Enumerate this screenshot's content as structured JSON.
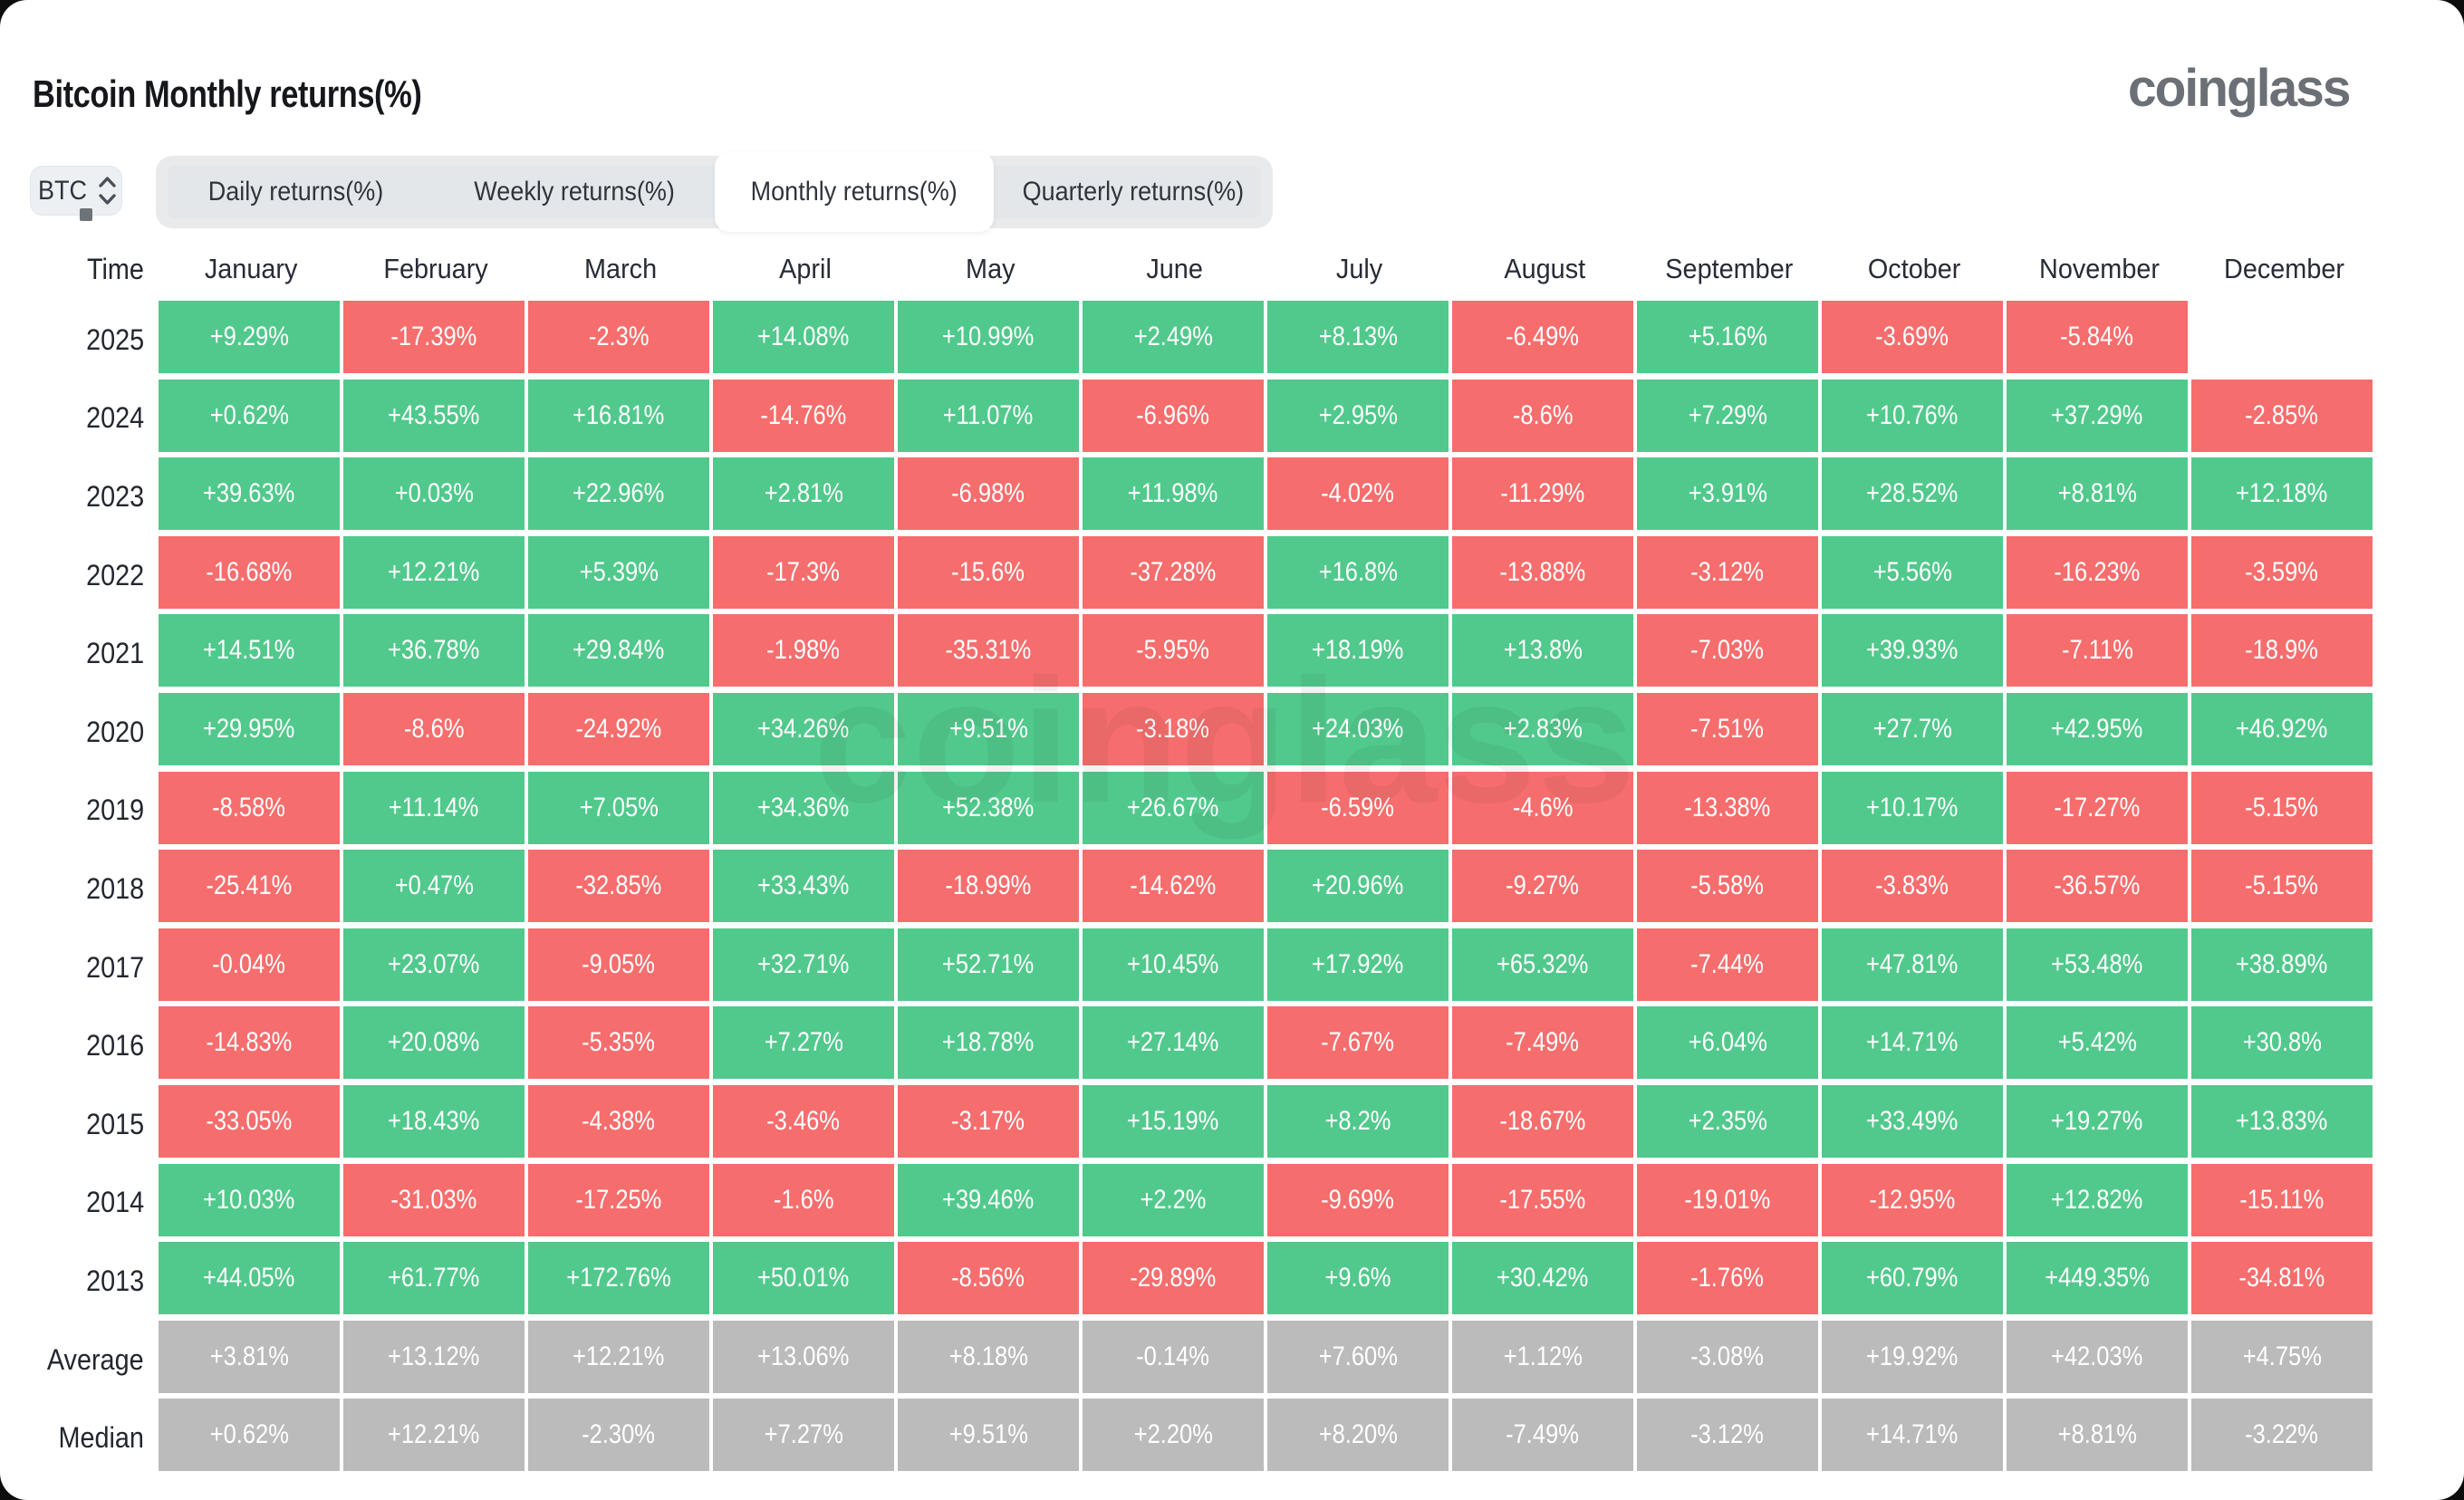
{
  "header": {
    "title": "Bitcoin Monthly returns(%)",
    "logo": "coinglass"
  },
  "controls": {
    "symbol": "BTC",
    "tabs": [
      {
        "label": "Daily returns(%)",
        "active": false
      },
      {
        "label": "Weekly returns(%)",
        "active": false
      },
      {
        "label": "Monthly returns(%)",
        "active": true
      },
      {
        "label": "Quarterly returns(%)",
        "active": false
      }
    ]
  },
  "watermark": "coinglass",
  "colors": {
    "positive": "#51c98c",
    "negative": "#f66d6d",
    "neutral": "#bbbbbb"
  },
  "table": {
    "time_header": "Time",
    "months": [
      "January",
      "February",
      "March",
      "April",
      "May",
      "June",
      "July",
      "August",
      "September",
      "October",
      "November",
      "December"
    ],
    "rows": [
      {
        "label": "2025",
        "type": "year",
        "values": [
          "+9.29%",
          "-17.39%",
          "-2.3%",
          "+14.08%",
          "+10.99%",
          "+2.49%",
          "+8.13%",
          "-6.49%",
          "+5.16%",
          "-3.69%",
          "-5.84%",
          null
        ]
      },
      {
        "label": "2024",
        "type": "year",
        "values": [
          "+0.62%",
          "+43.55%",
          "+16.81%",
          "-14.76%",
          "+11.07%",
          "-6.96%",
          "+2.95%",
          "-8.6%",
          "+7.29%",
          "+10.76%",
          "+37.29%",
          "-2.85%"
        ]
      },
      {
        "label": "2023",
        "type": "year",
        "values": [
          "+39.63%",
          "+0.03%",
          "+22.96%",
          "+2.81%",
          "-6.98%",
          "+11.98%",
          "-4.02%",
          "-11.29%",
          "+3.91%",
          "+28.52%",
          "+8.81%",
          "+12.18%"
        ]
      },
      {
        "label": "2022",
        "type": "year",
        "values": [
          "-16.68%",
          "+12.21%",
          "+5.39%",
          "-17.3%",
          "-15.6%",
          "-37.28%",
          "+16.8%",
          "-13.88%",
          "-3.12%",
          "+5.56%",
          "-16.23%",
          "-3.59%"
        ]
      },
      {
        "label": "2021",
        "type": "year",
        "values": [
          "+14.51%",
          "+36.78%",
          "+29.84%",
          "-1.98%",
          "-35.31%",
          "-5.95%",
          "+18.19%",
          "+13.8%",
          "-7.03%",
          "+39.93%",
          "-7.11%",
          "-18.9%"
        ]
      },
      {
        "label": "2020",
        "type": "year",
        "values": [
          "+29.95%",
          "-8.6%",
          "-24.92%",
          "+34.26%",
          "+9.51%",
          "-3.18%",
          "+24.03%",
          "+2.83%",
          "-7.51%",
          "+27.7%",
          "+42.95%",
          "+46.92%"
        ]
      },
      {
        "label": "2019",
        "type": "year",
        "values": [
          "-8.58%",
          "+11.14%",
          "+7.05%",
          "+34.36%",
          "+52.38%",
          "+26.67%",
          "-6.59%",
          "-4.6%",
          "-13.38%",
          "+10.17%",
          "-17.27%",
          "-5.15%"
        ]
      },
      {
        "label": "2018",
        "type": "year",
        "values": [
          "-25.41%",
          "+0.47%",
          "-32.85%",
          "+33.43%",
          "-18.99%",
          "-14.62%",
          "+20.96%",
          "-9.27%",
          "-5.58%",
          "-3.83%",
          "-36.57%",
          "-5.15%"
        ]
      },
      {
        "label": "2017",
        "type": "year",
        "values": [
          "-0.04%",
          "+23.07%",
          "-9.05%",
          "+32.71%",
          "+52.71%",
          "+10.45%",
          "+17.92%",
          "+65.32%",
          "-7.44%",
          "+47.81%",
          "+53.48%",
          "+38.89%"
        ]
      },
      {
        "label": "2016",
        "type": "year",
        "values": [
          "-14.83%",
          "+20.08%",
          "-5.35%",
          "+7.27%",
          "+18.78%",
          "+27.14%",
          "-7.67%",
          "-7.49%",
          "+6.04%",
          "+14.71%",
          "+5.42%",
          "+30.8%"
        ]
      },
      {
        "label": "2015",
        "type": "year",
        "values": [
          "-33.05%",
          "+18.43%",
          "-4.38%",
          "-3.46%",
          "-3.17%",
          "+15.19%",
          "+8.2%",
          "-18.67%",
          "+2.35%",
          "+33.49%",
          "+19.27%",
          "+13.83%"
        ]
      },
      {
        "label": "2014",
        "type": "year",
        "values": [
          "+10.03%",
          "-31.03%",
          "-17.25%",
          "-1.6%",
          "+39.46%",
          "+2.2%",
          "-9.69%",
          "-17.55%",
          "-19.01%",
          "-12.95%",
          "+12.82%",
          "-15.11%"
        ]
      },
      {
        "label": "2013",
        "type": "year",
        "values": [
          "+44.05%",
          "+61.77%",
          "+172.76%",
          "+50.01%",
          "-8.56%",
          "-29.89%",
          "+9.6%",
          "+30.42%",
          "-1.76%",
          "+60.79%",
          "+449.35%",
          "-34.81%"
        ]
      },
      {
        "label": "Average",
        "type": "summary",
        "values": [
          "+3.81%",
          "+13.12%",
          "+12.21%",
          "+13.06%",
          "+8.18%",
          "-0.14%",
          "+7.60%",
          "+1.12%",
          "-3.08%",
          "+19.92%",
          "+42.03%",
          "+4.75%"
        ]
      },
      {
        "label": "Median",
        "type": "summary",
        "values": [
          "+0.62%",
          "+12.21%",
          "-2.30%",
          "+7.27%",
          "+9.51%",
          "+2.20%",
          "+8.20%",
          "-7.49%",
          "-3.12%",
          "+14.71%",
          "+8.81%",
          "-3.22%"
        ]
      }
    ]
  },
  "chart_data": {
    "type": "heatmap",
    "title": "Bitcoin Monthly returns(%)",
    "x_categories": [
      "January",
      "February",
      "March",
      "April",
      "May",
      "June",
      "July",
      "August",
      "September",
      "October",
      "November",
      "December"
    ],
    "y_categories": [
      "2025",
      "2024",
      "2023",
      "2022",
      "2021",
      "2020",
      "2019",
      "2018",
      "2017",
      "2016",
      "2015",
      "2014",
      "2013",
      "Average",
      "Median"
    ],
    "unit": "%",
    "series": [
      {
        "name": "2025",
        "values": [
          9.29,
          -17.39,
          -2.3,
          14.08,
          10.99,
          2.49,
          8.13,
          -6.49,
          5.16,
          -3.69,
          -5.84,
          null
        ]
      },
      {
        "name": "2024",
        "values": [
          0.62,
          43.55,
          16.81,
          -14.76,
          11.07,
          -6.96,
          2.95,
          -8.6,
          7.29,
          10.76,
          37.29,
          -2.85
        ]
      },
      {
        "name": "2023",
        "values": [
          39.63,
          0.03,
          22.96,
          2.81,
          -6.98,
          11.98,
          -4.02,
          -11.29,
          3.91,
          28.52,
          8.81,
          12.18
        ]
      },
      {
        "name": "2022",
        "values": [
          -16.68,
          12.21,
          5.39,
          -17.3,
          -15.6,
          -37.28,
          16.8,
          -13.88,
          -3.12,
          5.56,
          -16.23,
          -3.59
        ]
      },
      {
        "name": "2021",
        "values": [
          14.51,
          36.78,
          29.84,
          -1.98,
          -35.31,
          -5.95,
          18.19,
          13.8,
          -7.03,
          39.93,
          -7.11,
          -18.9
        ]
      },
      {
        "name": "2020",
        "values": [
          29.95,
          -8.6,
          -24.92,
          34.26,
          9.51,
          -3.18,
          24.03,
          2.83,
          -7.51,
          27.7,
          42.95,
          46.92
        ]
      },
      {
        "name": "2019",
        "values": [
          -8.58,
          11.14,
          7.05,
          34.36,
          52.38,
          26.67,
          -6.59,
          -4.6,
          -13.38,
          10.17,
          -17.27,
          -5.15
        ]
      },
      {
        "name": "2018",
        "values": [
          -25.41,
          0.47,
          -32.85,
          33.43,
          -18.99,
          -14.62,
          20.96,
          -9.27,
          -5.58,
          -3.83,
          -36.57,
          -5.15
        ]
      },
      {
        "name": "2017",
        "values": [
          -0.04,
          23.07,
          -9.05,
          32.71,
          52.71,
          10.45,
          17.92,
          65.32,
          -7.44,
          47.81,
          53.48,
          38.89
        ]
      },
      {
        "name": "2016",
        "values": [
          -14.83,
          20.08,
          -5.35,
          7.27,
          18.78,
          27.14,
          -7.67,
          -7.49,
          6.04,
          14.71,
          5.42,
          30.8
        ]
      },
      {
        "name": "2015",
        "values": [
          -33.05,
          18.43,
          -4.38,
          -3.46,
          -3.17,
          15.19,
          8.2,
          -18.67,
          2.35,
          33.49,
          19.27,
          13.83
        ]
      },
      {
        "name": "2014",
        "values": [
          10.03,
          -31.03,
          -17.25,
          -1.6,
          39.46,
          2.2,
          -9.69,
          -17.55,
          -19.01,
          -12.95,
          12.82,
          -15.11
        ]
      },
      {
        "name": "2013",
        "values": [
          44.05,
          61.77,
          172.76,
          50.01,
          -8.56,
          -29.89,
          9.6,
          30.42,
          -1.76,
          60.79,
          449.35,
          -34.81
        ]
      },
      {
        "name": "Average",
        "values": [
          3.81,
          13.12,
          12.21,
          13.06,
          8.18,
          -0.14,
          7.6,
          1.12,
          -3.08,
          19.92,
          42.03,
          4.75
        ]
      },
      {
        "name": "Median",
        "values": [
          0.62,
          12.21,
          -2.3,
          7.27,
          9.51,
          2.2,
          8.2,
          -7.49,
          -3.12,
          14.71,
          8.81,
          -3.22
        ]
      }
    ],
    "legend": "none",
    "color_coding": "green = positive monthly return, red = negative monthly return, gray = Average/Median summary rows"
  }
}
